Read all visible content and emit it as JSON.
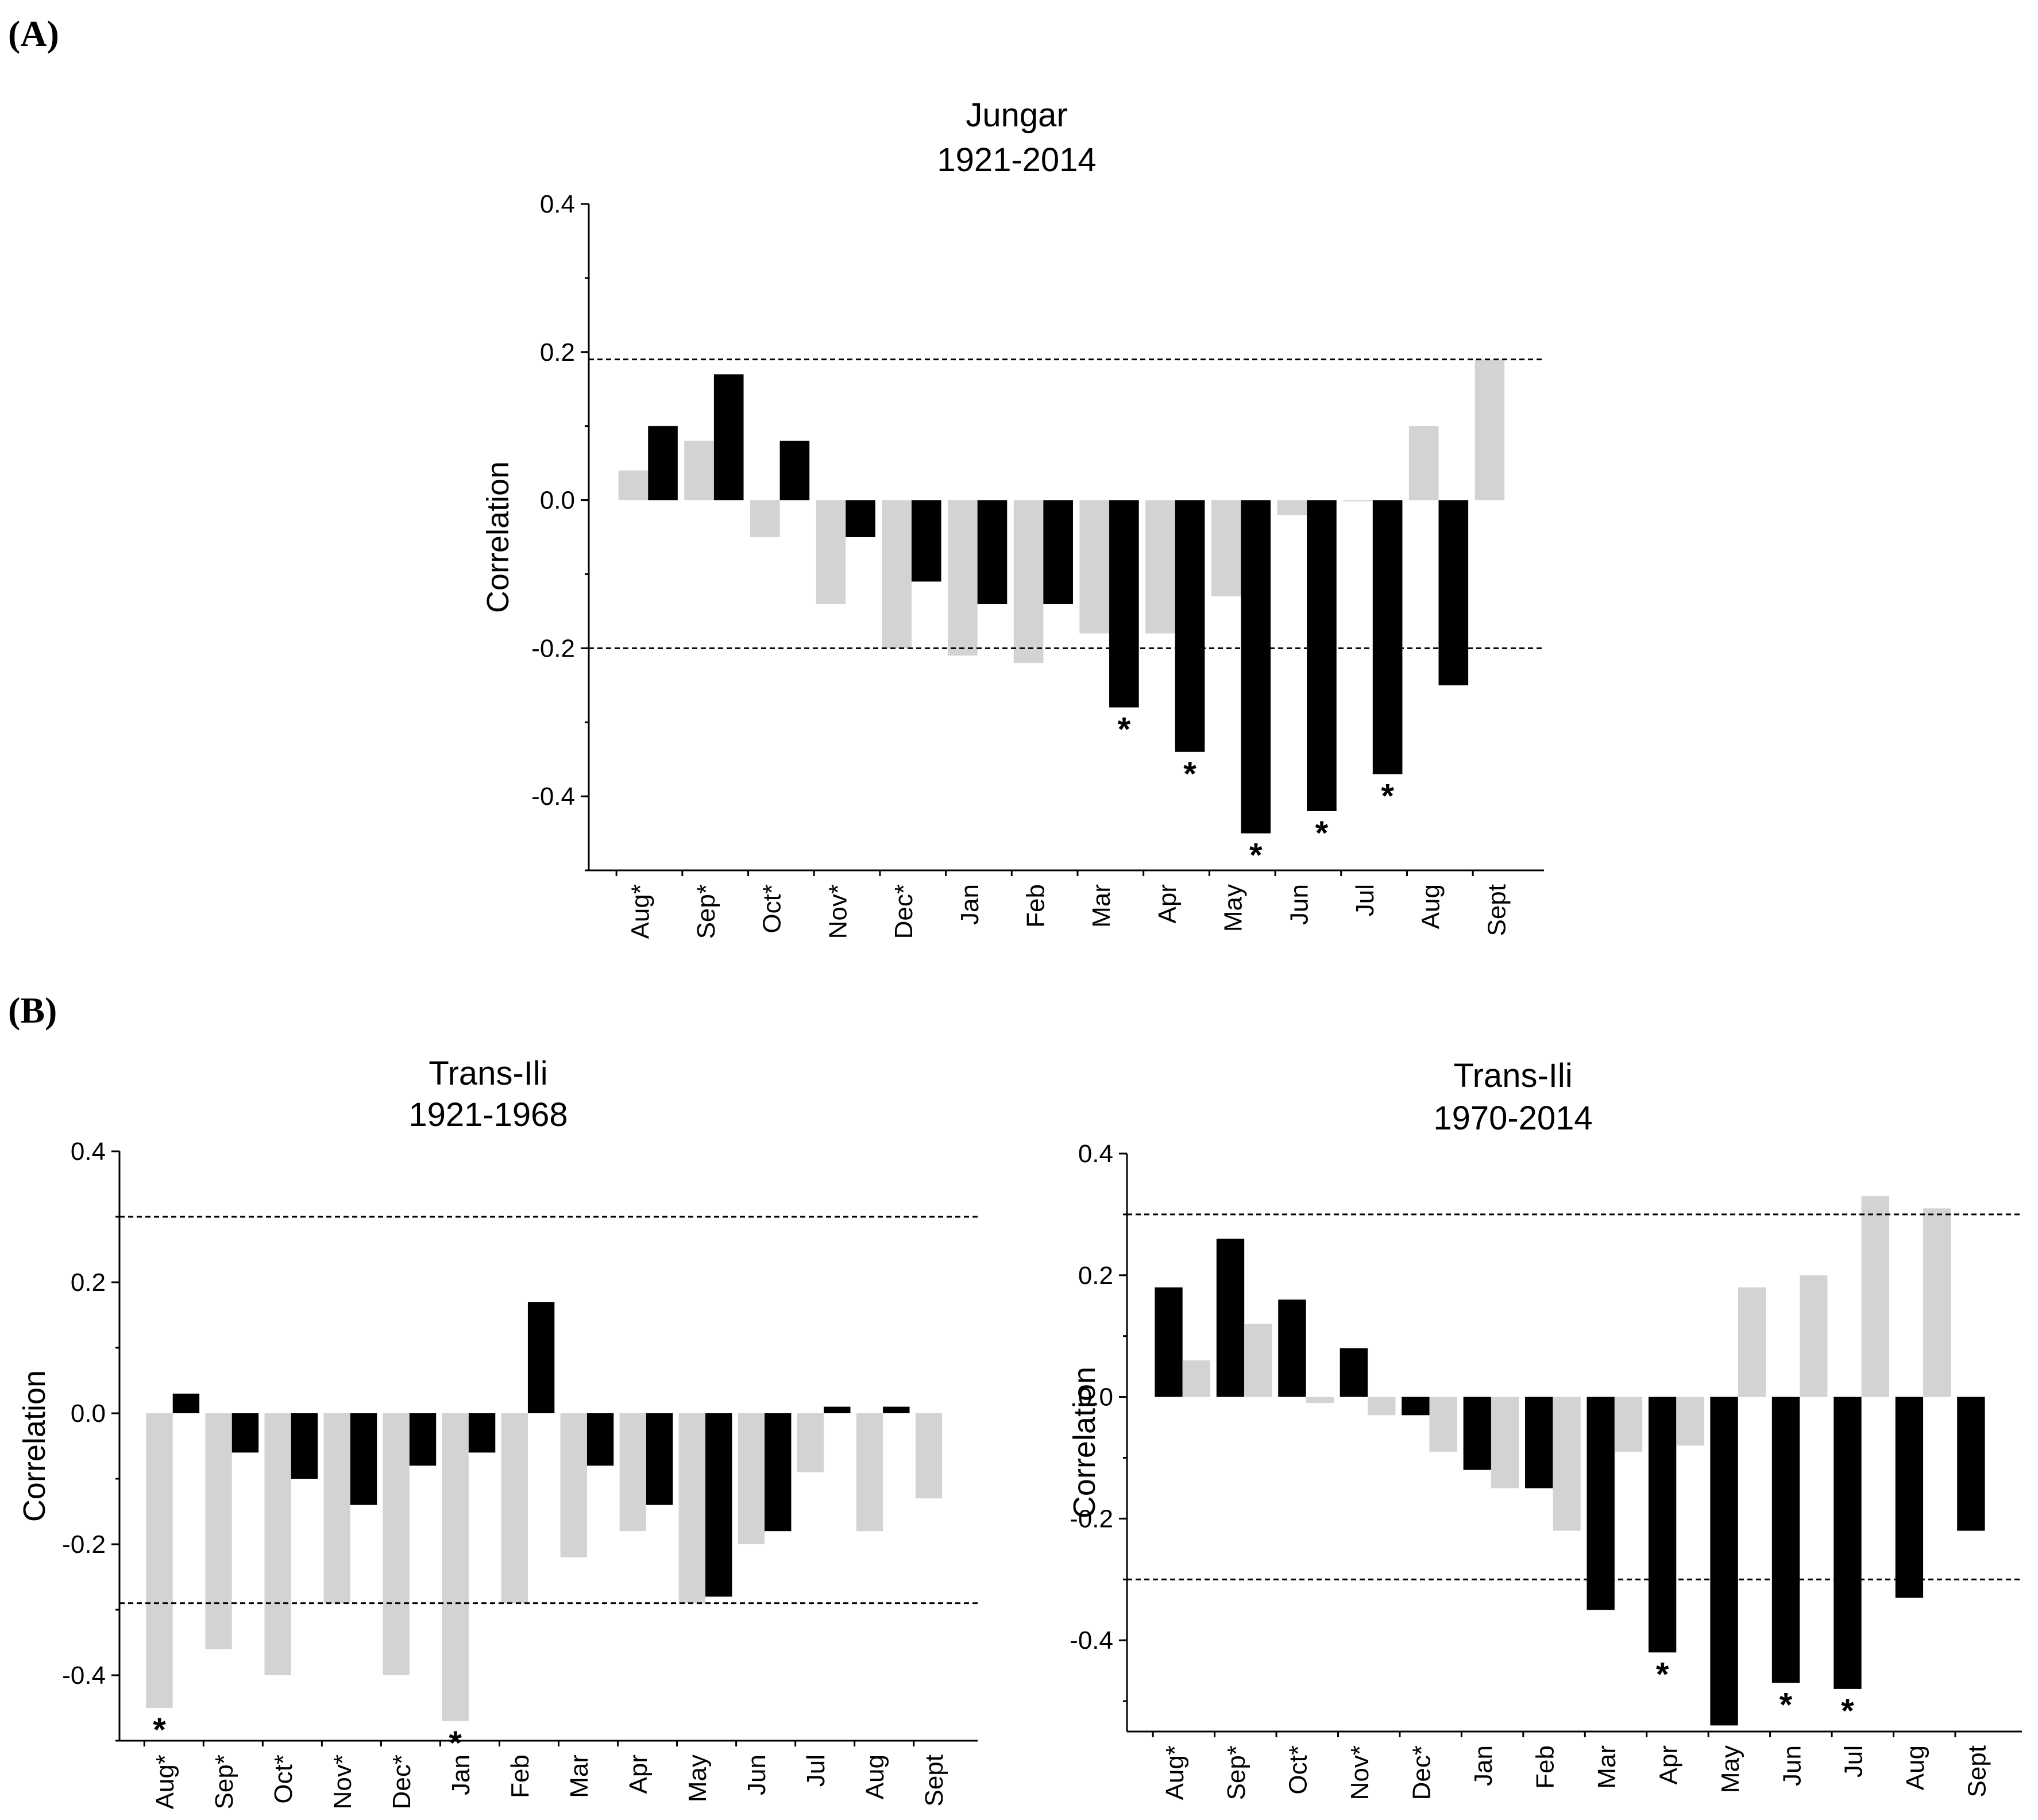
{
  "figure": {
    "panel_labels": [
      "(A)",
      "(B)"
    ]
  },
  "colors": {
    "gray": "#d3d3d3",
    "black": "#000000"
  },
  "chart_data": [
    {
      "type": "bar",
      "title": [
        "Jungar",
        "1921-2014"
      ],
      "ylabel": "Correlation",
      "ylim": [
        -0.5,
        0.4
      ],
      "yticks": [
        0.4,
        0.2,
        0.0,
        -0.2,
        -0.4
      ],
      "ytick_labels": [
        "0.4",
        "0.2",
        "0.0",
        "-0.2",
        "-0.4"
      ],
      "categories": [
        "Aug*",
        "Sep*",
        "Oct*",
        "Nov*",
        "Dec*",
        "Jan",
        "Feb",
        "Mar",
        "Apr",
        "May",
        "Jun",
        "Jul",
        "Aug",
        "Sept"
      ],
      "series": [
        {
          "color": "gray",
          "values": [
            0.04,
            0.08,
            -0.05,
            -0.14,
            -0.2,
            -0.21,
            -0.22,
            -0.18,
            -0.18,
            -0.13,
            -0.02,
            0.0,
            0.1,
            0.19
          ]
        },
        {
          "color": "black",
          "values": [
            0.1,
            0.17,
            0.08,
            -0.05,
            -0.11,
            -0.14,
            -0.14,
            -0.28,
            -0.34,
            -0.45,
            -0.42,
            -0.37,
            -0.25,
            null
          ]
        }
      ],
      "significance_lines": [
        0.19,
        -0.2
      ],
      "significant": [
        {
          "series": 1,
          "index": 7
        },
        {
          "series": 1,
          "index": 8
        },
        {
          "series": 1,
          "index": 9
        },
        {
          "series": 1,
          "index": 10
        },
        {
          "series": 1,
          "index": 11
        }
      ],
      "significance_marker": "*"
    },
    {
      "type": "bar",
      "title": [
        "Trans-Ili",
        "1921-1968"
      ],
      "ylabel": "Correlation",
      "ylim": [
        -0.5,
        0.4
      ],
      "yticks": [
        0.4,
        0.2,
        0.0,
        -0.2,
        -0.4
      ],
      "ytick_labels": [
        "0.4",
        "0.2",
        "0.0",
        "-0.2",
        "-0.4"
      ],
      "categories": [
        "Aug*",
        "Sep*",
        "Oct*",
        "Nov*",
        "Dec*",
        "Jan",
        "Feb",
        "Mar",
        "Apr",
        "May",
        "Jun",
        "Jul",
        "Aug",
        "Sept"
      ],
      "series": [
        {
          "color": "gray",
          "values": [
            -0.45,
            -0.36,
            -0.4,
            -0.29,
            -0.4,
            -0.47,
            -0.29,
            -0.22,
            -0.18,
            -0.29,
            -0.2,
            -0.09,
            -0.18,
            -0.13
          ]
        },
        {
          "color": "black",
          "values": [
            0.03,
            -0.06,
            -0.1,
            -0.14,
            -0.08,
            -0.06,
            0.17,
            -0.08,
            -0.14,
            -0.28,
            -0.18,
            0.01,
            0.01,
            null
          ]
        }
      ],
      "significance_lines": [
        0.3,
        -0.29
      ],
      "significant": [
        {
          "series": 0,
          "index": 0
        },
        {
          "series": 0,
          "index": 5
        }
      ],
      "significance_marker": "*"
    },
    {
      "type": "bar",
      "title": [
        "Trans-Ili",
        "1970-2014"
      ],
      "ylabel": "Correlation",
      "ylim": [
        -0.55,
        0.4
      ],
      "yticks": [
        0.4,
        0.2,
        0.0,
        -0.2,
        -0.4
      ],
      "ytick_labels": [
        "0.4",
        "0.2",
        "0.0",
        "-0.2",
        "-0.4"
      ],
      "categories": [
        "Aug*",
        "Sep*",
        "Oct*",
        "Nov*",
        "Dec*",
        "Jan",
        "Feb",
        "Mar",
        "Apr",
        "May",
        "Jun",
        "Jul",
        "Aug",
        "Sept"
      ],
      "series": [
        {
          "color": "black",
          "values": [
            0.18,
            0.26,
            0.16,
            0.08,
            -0.03,
            -0.12,
            -0.15,
            -0.35,
            -0.42,
            -0.54,
            -0.47,
            -0.48,
            -0.33,
            -0.22
          ]
        },
        {
          "color": "gray",
          "values": [
            0.06,
            0.12,
            -0.01,
            -0.03,
            -0.09,
            -0.15,
            -0.22,
            -0.09,
            -0.08,
            0.18,
            0.2,
            0.33,
            0.31,
            null
          ]
        }
      ],
      "significance_lines": [
        0.3,
        -0.3
      ],
      "significant": [
        {
          "series": 0,
          "index": 8
        },
        {
          "series": 0,
          "index": 10
        },
        {
          "series": 0,
          "index": 11
        }
      ],
      "significance_marker": "*"
    }
  ]
}
